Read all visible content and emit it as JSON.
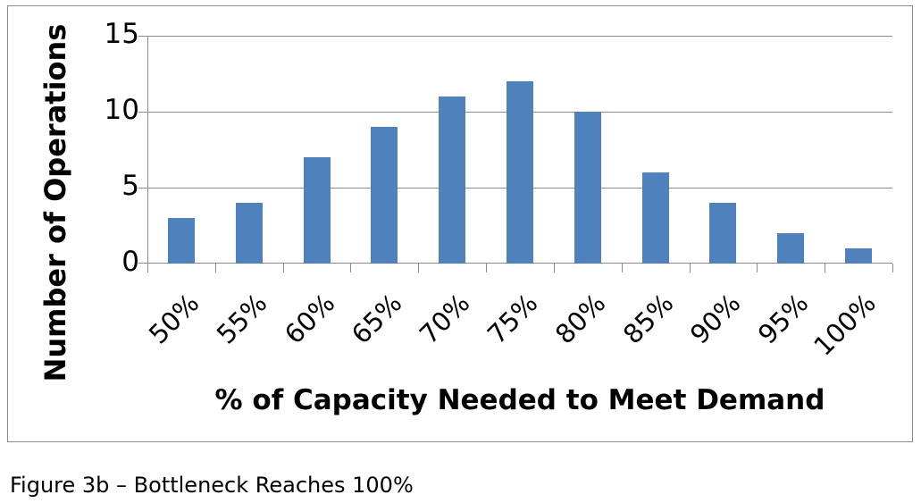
{
  "chart_data": {
    "type": "bar",
    "title": "",
    "xlabel": "% of Capacity Needed to Meet Demand",
    "ylabel": "Number of Operations",
    "categories": [
      "50%",
      "55%",
      "60%",
      "65%",
      "70%",
      "75%",
      "80%",
      "85%",
      "90%",
      "95%",
      "100%"
    ],
    "values": [
      3,
      4,
      7,
      9,
      11,
      12,
      10,
      6,
      4,
      2,
      1
    ],
    "ylim": [
      0,
      15
    ],
    "yticks": [
      "0",
      "5",
      "10",
      "15"
    ],
    "grid": true,
    "legend": null,
    "bar_color": "#4f81bd"
  },
  "caption": "Figure 3b – Bottleneck Reaches 100%"
}
